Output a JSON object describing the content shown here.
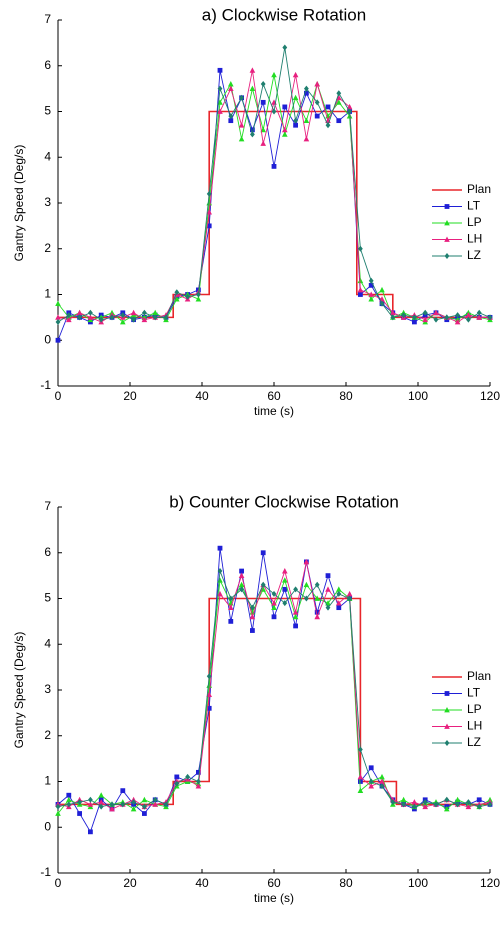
{
  "chart_data": [
    {
      "type": "line",
      "title": "a) Clockwise Rotation",
      "xlabel": "time (s)",
      "ylabel": "Gantry Speed (Deg/s)",
      "xlim": [
        0,
        120
      ],
      "xticks": [
        0,
        20,
        40,
        60,
        80,
        100,
        120
      ],
      "ylim": [
        -1,
        7
      ],
      "yticks": [
        -1,
        0,
        1,
        2,
        3,
        4,
        5,
        6,
        7
      ],
      "legend": "right",
      "x": [
        0,
        3,
        6,
        9,
        12,
        15,
        18,
        21,
        24,
        27,
        30,
        33,
        36,
        39,
        42,
        45,
        48,
        51,
        54,
        57,
        60,
        63,
        66,
        69,
        72,
        75,
        78,
        81,
        84,
        87,
        90,
        93,
        96,
        99,
        102,
        105,
        108,
        111,
        114,
        117,
        120
      ],
      "series": [
        {
          "name": "Plan",
          "color": "#e8262b",
          "marker": "none",
          "x": [
            0,
            32,
            32,
            42,
            42,
            83,
            83,
            93,
            93,
            120
          ],
          "values": [
            0.5,
            0.5,
            1,
            1,
            5,
            5,
            1,
            1,
            0.5,
            0.5
          ]
        },
        {
          "name": "LT",
          "color": "#1f1fd6",
          "marker": "square",
          "values": [
            0.0,
            0.6,
            0.5,
            0.4,
            0.55,
            0.5,
            0.6,
            0.45,
            0.5,
            0.55,
            0.5,
            0.95,
            1.0,
            1.1,
            2.5,
            5.9,
            4.8,
            5.3,
            4.6,
            5.2,
            3.8,
            5.1,
            4.7,
            5.4,
            4.9,
            5.1,
            4.8,
            5.0,
            1.0,
            1.2,
            0.8,
            0.6,
            0.5,
            0.4,
            0.55,
            0.6,
            0.45,
            0.5,
            0.55,
            0.5,
            0.5
          ]
        },
        {
          "name": "LP",
          "color": "#22dd22",
          "marker": "triangle",
          "values": [
            0.8,
            0.5,
            0.6,
            0.45,
            0.5,
            0.6,
            0.4,
            0.55,
            0.5,
            0.6,
            0.45,
            0.9,
            1.0,
            0.9,
            3.0,
            5.2,
            5.6,
            4.4,
            5.5,
            4.6,
            5.8,
            4.5,
            5.3,
            4.8,
            5.6,
            4.9,
            5.2,
            4.9,
            1.3,
            0.9,
            1.1,
            0.5,
            0.6,
            0.5,
            0.4,
            0.6,
            0.5,
            0.45,
            0.6,
            0.5,
            0.45
          ]
        },
        {
          "name": "LH",
          "color": "#e8207f",
          "marker": "triangle",
          "values": [
            0.5,
            0.45,
            0.6,
            0.5,
            0.4,
            0.55,
            0.5,
            0.6,
            0.45,
            0.5,
            0.55,
            1.0,
            0.9,
            1.05,
            2.8,
            5.0,
            5.5,
            4.7,
            5.9,
            4.3,
            5.2,
            4.6,
            5.8,
            4.4,
            5.6,
            4.8,
            5.3,
            5.1,
            1.1,
            1.0,
            0.9,
            0.6,
            0.5,
            0.55,
            0.45,
            0.6,
            0.5,
            0.4,
            0.55,
            0.5,
            0.5
          ]
        },
        {
          "name": "LZ",
          "color": "#1f7f6f",
          "marker": "diamond",
          "values": [
            0.4,
            0.55,
            0.5,
            0.6,
            0.45,
            0.5,
            0.55,
            0.45,
            0.6,
            0.5,
            0.5,
            1.05,
            0.95,
            1.0,
            3.2,
            5.5,
            4.9,
            5.3,
            4.5,
            5.6,
            5.0,
            6.4,
            4.8,
            5.5,
            5.2,
            4.7,
            5.4,
            5.0,
            2.0,
            1.3,
            0.8,
            0.5,
            0.55,
            0.5,
            0.6,
            0.45,
            0.5,
            0.55,
            0.45,
            0.6,
            0.5
          ]
        }
      ]
    },
    {
      "type": "line",
      "title": "b) Counter Clockwise Rotation",
      "xlabel": "time (s)",
      "ylabel": "Gantry Speed (Deg/s)",
      "xlim": [
        0,
        120
      ],
      "xticks": [
        0,
        20,
        40,
        60,
        80,
        100,
        120
      ],
      "ylim": [
        -1,
        7
      ],
      "yticks": [
        -1,
        0,
        1,
        2,
        3,
        4,
        5,
        6,
        7
      ],
      "legend": "right",
      "x": [
        0,
        3,
        6,
        9,
        12,
        15,
        18,
        21,
        24,
        27,
        30,
        33,
        36,
        39,
        42,
        45,
        48,
        51,
        54,
        57,
        60,
        63,
        66,
        69,
        72,
        75,
        78,
        81,
        84,
        87,
        90,
        93,
        96,
        99,
        102,
        105,
        108,
        111,
        114,
        117,
        120
      ],
      "series": [
        {
          "name": "Plan",
          "color": "#e8262b",
          "marker": "none",
          "x": [
            0,
            32,
            32,
            42,
            42,
            84,
            84,
            94,
            94,
            120
          ],
          "values": [
            0.5,
            0.5,
            1,
            1,
            5,
            5,
            1,
            1,
            0.5,
            0.5
          ]
        },
        {
          "name": "LT",
          "color": "#1f1fd6",
          "marker": "square",
          "values": [
            0.5,
            0.7,
            0.3,
            -0.1,
            0.6,
            0.4,
            0.8,
            0.5,
            0.3,
            0.6,
            0.5,
            1.1,
            1.0,
            1.2,
            2.6,
            6.1,
            4.5,
            5.6,
            4.3,
            6.0,
            4.6,
            5.2,
            4.4,
            5.8,
            4.7,
            5.5,
            4.8,
            5.0,
            1.0,
            1.3,
            0.9,
            0.6,
            0.5,
            0.4,
            0.6,
            0.5,
            0.45,
            0.55,
            0.5,
            0.6,
            0.5
          ]
        },
        {
          "name": "LP",
          "color": "#22dd22",
          "marker": "triangle",
          "values": [
            0.3,
            0.6,
            0.5,
            0.45,
            0.7,
            0.5,
            0.55,
            0.4,
            0.6,
            0.5,
            0.45,
            0.9,
            1.0,
            0.95,
            3.1,
            5.4,
            4.9,
            5.3,
            4.7,
            5.2,
            4.8,
            5.4,
            4.6,
            5.3,
            5.0,
            4.9,
            5.2,
            5.0,
            0.8,
            1.0,
            1.1,
            0.5,
            0.6,
            0.45,
            0.5,
            0.55,
            0.4,
            0.6,
            0.5,
            0.45,
            0.6
          ]
        },
        {
          "name": "LH",
          "color": "#e8207f",
          "marker": "triangle",
          "values": [
            0.5,
            0.45,
            0.6,
            0.5,
            0.55,
            0.4,
            0.5,
            0.6,
            0.45,
            0.5,
            0.55,
            1.0,
            1.05,
            0.9,
            2.9,
            5.1,
            4.8,
            5.5,
            4.6,
            5.3,
            4.9,
            5.6,
            4.7,
            5.8,
            4.6,
            5.2,
            4.9,
            5.1,
            1.1,
            0.9,
            1.0,
            0.6,
            0.5,
            0.55,
            0.45,
            0.5,
            0.6,
            0.5,
            0.45,
            0.5,
            0.55
          ]
        },
        {
          "name": "LZ",
          "color": "#1f7f6f",
          "marker": "diamond",
          "values": [
            0.45,
            0.5,
            0.55,
            0.6,
            0.45,
            0.5,
            0.5,
            0.55,
            0.45,
            0.6,
            0.5,
            0.95,
            1.1,
            1.0,
            3.3,
            5.6,
            5.0,
            5.2,
            4.8,
            5.3,
            5.1,
            4.9,
            5.2,
            5.0,
            5.3,
            4.8,
            5.1,
            5.0,
            1.7,
            1.0,
            0.9,
            0.55,
            0.5,
            0.45,
            0.55,
            0.5,
            0.6,
            0.5,
            0.55,
            0.45,
            0.5
          ]
        }
      ]
    }
  ]
}
